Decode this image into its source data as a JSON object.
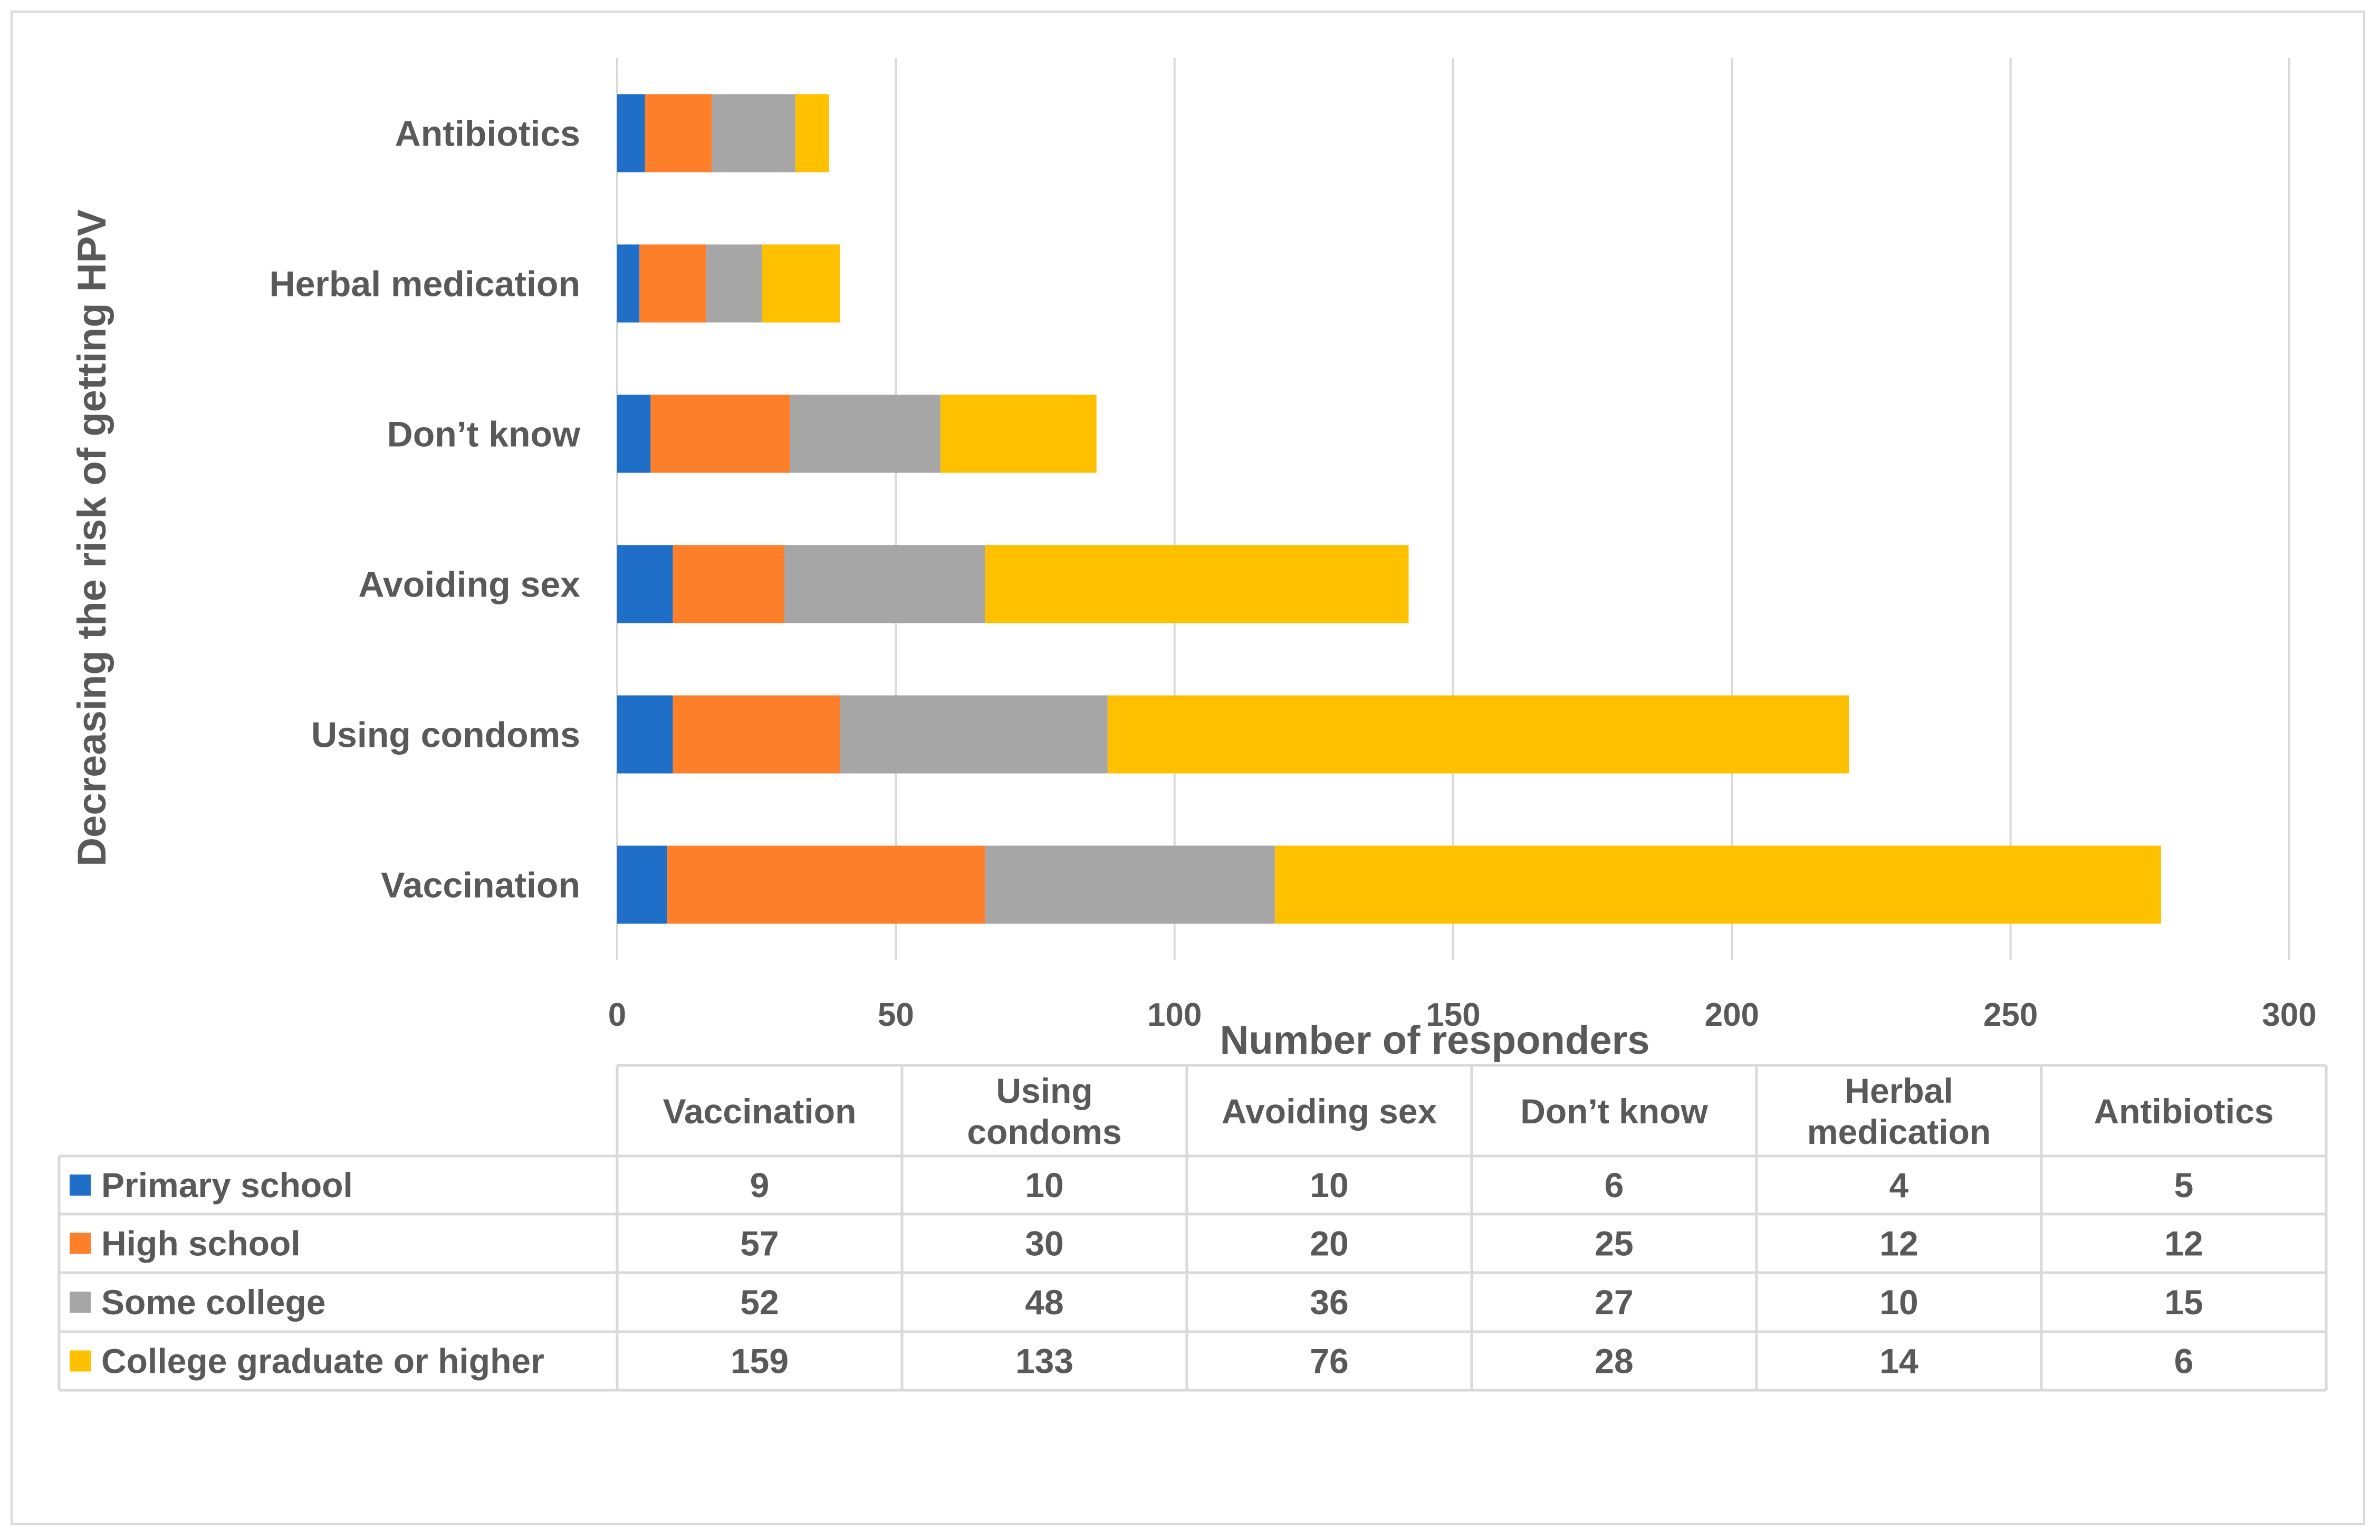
{
  "chart_data": {
    "type": "bar",
    "orientation": "horizontal",
    "stacked": true,
    "categories": [
      "Vaccination",
      "Using condoms",
      "Avoiding sex",
      "Don’t know",
      "Herbal medication",
      "Antibiotics"
    ],
    "table_headers": [
      [
        "Vaccination"
      ],
      [
        "Using",
        "condoms"
      ],
      [
        "Avoiding sex"
      ],
      [
        "Don’t know"
      ],
      [
        "Herbal",
        "medication"
      ],
      [
        "Antibiotics"
      ]
    ],
    "series": [
      {
        "name": "Primary school",
        "color": "#1f6fc9",
        "values": [
          9,
          10,
          10,
          6,
          4,
          5
        ]
      },
      {
        "name": "High school",
        "color": "#fd7f2a",
        "values": [
          57,
          30,
          20,
          25,
          12,
          12
        ]
      },
      {
        "name": "Some college",
        "color": "#a6a6a6",
        "values": [
          52,
          48,
          36,
          27,
          10,
          15
        ]
      },
      {
        "name": "College graduate or higher",
        "color": "#ffc000",
        "values": [
          159,
          133,
          76,
          28,
          14,
          6
        ]
      }
    ],
    "xlabel": "Number of responders",
    "ylabel": "Decreasing the risk of getting HPV",
    "xlim": [
      0,
      300
    ],
    "xticks": [
      0,
      50,
      100,
      150,
      200,
      250,
      300
    ],
    "grid": true,
    "legend": "data table below chart"
  }
}
